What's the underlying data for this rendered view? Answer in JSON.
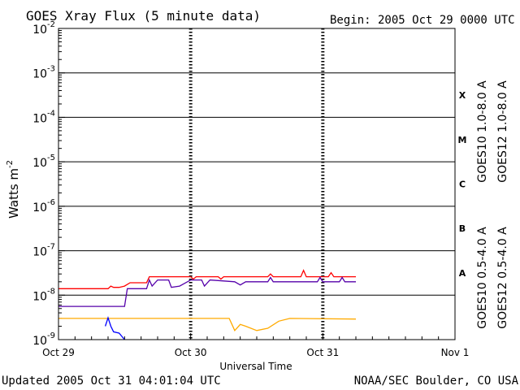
{
  "chart_data": {
    "type": "line",
    "title": "GOES Xray Flux (5 minute data)",
    "begin_label": "Begin:  2005 Oct 29 0000 UTC",
    "ylabel": "Watts m",
    "ylabel_sup": "-2",
    "xlabel": "Universal Time",
    "y_scale": "log",
    "ylim": [
      1e-09,
      0.01
    ],
    "y_ticks": [
      {
        "base": "10",
        "exp": "-2",
        "value": 0.01
      },
      {
        "base": "10",
        "exp": "-3",
        "value": 0.001
      },
      {
        "base": "10",
        "exp": "-4",
        "value": 0.0001
      },
      {
        "base": "10",
        "exp": "-5",
        "value": 1e-05
      },
      {
        "base": "10",
        "exp": "-6",
        "value": 1e-06
      },
      {
        "base": "10",
        "exp": "-7",
        "value": 1e-07
      },
      {
        "base": "10",
        "exp": "-8",
        "value": 1e-08
      },
      {
        "base": "10",
        "exp": "-9",
        "value": 1e-09
      }
    ],
    "xlim_hours": [
      0,
      72
    ],
    "x_ticks": [
      {
        "label": "Oct 29",
        "hours": 0
      },
      {
        "label": "Oct 30",
        "hours": 24
      },
      {
        "label": "Oct 31",
        "hours": 48
      },
      {
        "label": "Nov 1",
        "hours": 72
      }
    ],
    "flare_classes": [
      {
        "label": "X",
        "value": 0.000316
      },
      {
        "label": "M",
        "value": 3.16e-05
      },
      {
        "label": "C",
        "value": 3.16e-06
      },
      {
        "label": "B",
        "value": 3.16e-07
      },
      {
        "label": "A",
        "value": 3.16e-08
      }
    ],
    "class_gridlines": [
      0.001,
      0.0001,
      1e-05,
      1e-06,
      1e-07,
      1e-08
    ],
    "series": [
      {
        "name": "GOES12 1.0-8.0 A",
        "color": "#ff0000",
        "points": [
          [
            0,
            1.4e-08
          ],
          [
            9,
            1.4e-08
          ],
          [
            9.5,
            1.6e-08
          ],
          [
            10,
            1.5e-08
          ],
          [
            11,
            1.5e-08
          ],
          [
            12,
            1.6e-08
          ],
          [
            13,
            1.9e-08
          ],
          [
            16,
            1.9e-08
          ],
          [
            16.5,
            2.6e-08
          ],
          [
            24,
            2.6e-08
          ],
          [
            24.5,
            2.3e-08
          ],
          [
            25,
            2.6e-08
          ],
          [
            29,
            2.6e-08
          ],
          [
            29.5,
            2.3e-08
          ],
          [
            30,
            2.6e-08
          ],
          [
            38,
            2.6e-08
          ],
          [
            38.5,
            3e-08
          ],
          [
            39,
            2.6e-08
          ],
          [
            44,
            2.6e-08
          ],
          [
            44.5,
            3.6e-08
          ],
          [
            45,
            2.6e-08
          ],
          [
            49,
            2.6e-08
          ],
          [
            49.5,
            3.2e-08
          ],
          [
            50,
            2.6e-08
          ],
          [
            54,
            2.6e-08
          ]
        ]
      },
      {
        "name": "GOES10 1.0-8.0 A",
        "color": "#5500aa",
        "points": [
          [
            0,
            5.6e-09
          ],
          [
            12,
            5.6e-09
          ],
          [
            12.5,
            1.4e-08
          ],
          [
            16,
            1.4e-08
          ],
          [
            16.5,
            2.2e-08
          ],
          [
            17,
            1.6e-08
          ],
          [
            18,
            2.2e-08
          ],
          [
            20,
            2.2e-08
          ],
          [
            20.5,
            1.5e-08
          ],
          [
            22,
            1.6e-08
          ],
          [
            24,
            2.2e-08
          ],
          [
            26,
            2.2e-08
          ],
          [
            26.5,
            1.6e-08
          ],
          [
            27.5,
            2.2e-08
          ],
          [
            32,
            2e-08
          ],
          [
            33,
            1.7e-08
          ],
          [
            34,
            2e-08
          ],
          [
            38,
            2e-08
          ],
          [
            38.5,
            2.5e-08
          ],
          [
            39,
            2e-08
          ],
          [
            47,
            2e-08
          ],
          [
            47.5,
            2.5e-08
          ],
          [
            48,
            2e-08
          ],
          [
            51,
            2e-08
          ],
          [
            51.5,
            2.5e-08
          ],
          [
            52,
            2e-08
          ],
          [
            54,
            2e-08
          ]
        ]
      },
      {
        "name": "GOES10 0.5-4.0 A",
        "color": "#ffaa00",
        "points": [
          [
            0,
            3e-09
          ],
          [
            24,
            3e-09
          ],
          [
            31,
            3e-09
          ],
          [
            31.5,
            2.2e-09
          ],
          [
            32,
            1.6e-09
          ],
          [
            33,
            2.2e-09
          ],
          [
            34,
            2e-09
          ],
          [
            36,
            1.6e-09
          ],
          [
            38,
            1.8e-09
          ],
          [
            40,
            2.6e-09
          ],
          [
            42,
            3e-09
          ],
          [
            54,
            2.9e-09
          ]
        ]
      },
      {
        "name": "GOES12 0.5-4.0 A",
        "color": "#0000ff",
        "points": [
          [
            8.5,
            2e-09
          ],
          [
            9,
            3.1e-09
          ],
          [
            9.5,
            2e-09
          ],
          [
            10,
            1.5e-09
          ],
          [
            11,
            1.4e-09
          ],
          [
            12,
            1e-09
          ]
        ]
      }
    ]
  },
  "footer": {
    "updated": "Updated 2005 Oct 31 04:01:04 UTC",
    "source": "NOAA/SEC Boulder, CO USA"
  }
}
